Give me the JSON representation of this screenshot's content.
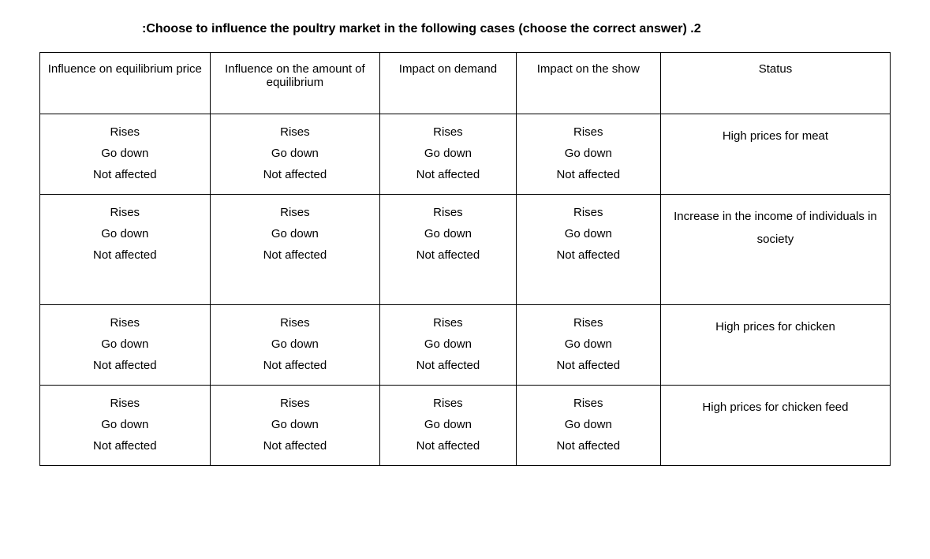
{
  "question": {
    "prefix": ":",
    "text": "Choose to influence the poultry market in the following cases (choose the correct answer)",
    "number": ".2"
  },
  "columns": [
    "Influence on equilibrium price",
    "Influence on the amount of equilibrium",
    "Impact on demand",
    "Impact on the show",
    "Status"
  ],
  "options": [
    "Rises",
    "Go down",
    "Not affected"
  ],
  "rows": [
    {
      "status": "High prices for meat",
      "tall": false
    },
    {
      "status": "Increase in the income of individuals in society",
      "tall": true
    },
    {
      "status": "High prices for chicken",
      "tall": false
    },
    {
      "status": "High prices for chicken feed",
      "tall": false
    }
  ],
  "colors": {
    "background": "#ffffff",
    "text": "#000000",
    "border": "#000000"
  },
  "typography": {
    "base_fontsize": 15,
    "title_fontsize": 16,
    "font_family": "Arial"
  }
}
